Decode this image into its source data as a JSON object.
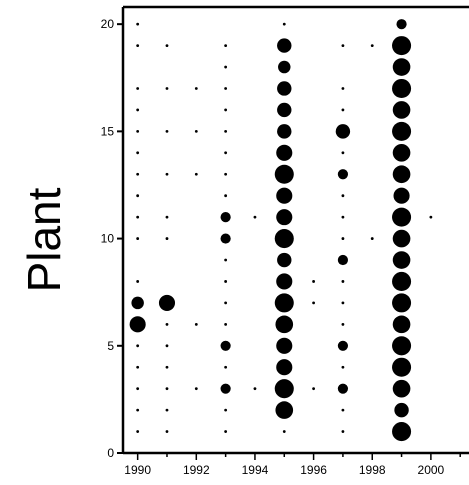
{
  "chart_data": {
    "type": "scatter",
    "ylabel": "Plant",
    "xlabel": "",
    "title": "",
    "xlim": [
      1989.5,
      2001.3
    ],
    "ylim": [
      0,
      20.8
    ],
    "xticks": [
      1990,
      1992,
      1994,
      1996,
      1998,
      2000
    ],
    "xtick_labels": [
      "1990",
      "1992",
      "1994",
      "1996",
      "1998",
      "2000"
    ],
    "yticks": [
      0,
      5,
      10,
      15,
      20
    ],
    "ytick_labels": [
      "0",
      "5",
      "10",
      "15",
      "20"
    ],
    "grid": false,
    "legend": "none",
    "marker_color": "#000000",
    "size_encoding": "marker area proportional to value (relative 1-10)",
    "points": [
      {
        "x": 1990,
        "y": 1,
        "v": 1
      },
      {
        "x": 1990,
        "y": 2,
        "v": 1
      },
      {
        "x": 1990,
        "y": 3,
        "v": 1
      },
      {
        "x": 1990,
        "y": 4,
        "v": 1
      },
      {
        "x": 1990,
        "y": 5,
        "v": 1
      },
      {
        "x": 1990,
        "y": 6,
        "v": 5
      },
      {
        "x": 1990,
        "y": 7,
        "v": 3
      },
      {
        "x": 1990,
        "y": 8,
        "v": 1
      },
      {
        "x": 1990,
        "y": 10,
        "v": 1
      },
      {
        "x": 1990,
        "y": 11,
        "v": 1
      },
      {
        "x": 1990,
        "y": 12,
        "v": 1
      },
      {
        "x": 1990,
        "y": 13,
        "v": 1
      },
      {
        "x": 1990,
        "y": 14,
        "v": 1
      },
      {
        "x": 1990,
        "y": 15,
        "v": 1
      },
      {
        "x": 1990,
        "y": 16,
        "v": 1
      },
      {
        "x": 1990,
        "y": 17,
        "v": 1
      },
      {
        "x": 1990,
        "y": 19,
        "v": 1
      },
      {
        "x": 1990,
        "y": 20,
        "v": 1
      },
      {
        "x": 1991,
        "y": 1,
        "v": 1
      },
      {
        "x": 1991,
        "y": 2,
        "v": 1
      },
      {
        "x": 1991,
        "y": 3,
        "v": 1
      },
      {
        "x": 1991,
        "y": 4,
        "v": 1
      },
      {
        "x": 1991,
        "y": 5,
        "v": 1
      },
      {
        "x": 1991,
        "y": 6,
        "v": 1
      },
      {
        "x": 1991,
        "y": 7,
        "v": 5
      },
      {
        "x": 1991,
        "y": 10,
        "v": 1
      },
      {
        "x": 1991,
        "y": 11,
        "v": 1
      },
      {
        "x": 1991,
        "y": 13,
        "v": 1
      },
      {
        "x": 1991,
        "y": 15,
        "v": 1
      },
      {
        "x": 1991,
        "y": 17,
        "v": 1
      },
      {
        "x": 1991,
        "y": 19,
        "v": 1
      },
      {
        "x": 1992,
        "y": 3,
        "v": 1
      },
      {
        "x": 1992,
        "y": 6,
        "v": 1
      },
      {
        "x": 1992,
        "y": 13,
        "v": 1
      },
      {
        "x": 1992,
        "y": 15,
        "v": 1
      },
      {
        "x": 1992,
        "y": 17,
        "v": 1
      },
      {
        "x": 1993,
        "y": 1,
        "v": 1
      },
      {
        "x": 1993,
        "y": 2,
        "v": 1
      },
      {
        "x": 1993,
        "y": 3,
        "v": 2
      },
      {
        "x": 1993,
        "y": 4,
        "v": 1
      },
      {
        "x": 1993,
        "y": 5,
        "v": 2
      },
      {
        "x": 1993,
        "y": 6,
        "v": 1
      },
      {
        "x": 1993,
        "y": 7,
        "v": 1
      },
      {
        "x": 1993,
        "y": 8,
        "v": 1
      },
      {
        "x": 1993,
        "y": 9,
        "v": 1
      },
      {
        "x": 1993,
        "y": 10,
        "v": 2
      },
      {
        "x": 1993,
        "y": 11,
        "v": 2
      },
      {
        "x": 1993,
        "y": 12,
        "v": 1
      },
      {
        "x": 1993,
        "y": 13,
        "v": 1
      },
      {
        "x": 1993,
        "y": 14,
        "v": 1
      },
      {
        "x": 1993,
        "y": 15,
        "v": 1
      },
      {
        "x": 1993,
        "y": 16,
        "v": 1
      },
      {
        "x": 1993,
        "y": 17,
        "v": 1
      },
      {
        "x": 1993,
        "y": 18,
        "v": 1
      },
      {
        "x": 1993,
        "y": 19,
        "v": 1
      },
      {
        "x": 1994,
        "y": 3,
        "v": 1
      },
      {
        "x": 1994,
        "y": 11,
        "v": 1
      },
      {
        "x": 1995,
        "y": 1,
        "v": 1
      },
      {
        "x": 1995,
        "y": 2,
        "v": 6
      },
      {
        "x": 1995,
        "y": 3,
        "v": 7
      },
      {
        "x": 1995,
        "y": 4,
        "v": 5
      },
      {
        "x": 1995,
        "y": 5,
        "v": 5
      },
      {
        "x": 1995,
        "y": 6,
        "v": 6
      },
      {
        "x": 1995,
        "y": 7,
        "v": 7
      },
      {
        "x": 1995,
        "y": 8,
        "v": 5
      },
      {
        "x": 1995,
        "y": 9,
        "v": 4
      },
      {
        "x": 1995,
        "y": 10,
        "v": 7
      },
      {
        "x": 1995,
        "y": 11,
        "v": 5
      },
      {
        "x": 1995,
        "y": 12,
        "v": 5
      },
      {
        "x": 1995,
        "y": 13,
        "v": 7
      },
      {
        "x": 1995,
        "y": 14,
        "v": 5
      },
      {
        "x": 1995,
        "y": 15,
        "v": 4
      },
      {
        "x": 1995,
        "y": 16,
        "v": 4
      },
      {
        "x": 1995,
        "y": 17,
        "v": 4
      },
      {
        "x": 1995,
        "y": 18,
        "v": 3
      },
      {
        "x": 1995,
        "y": 19,
        "v": 4
      },
      {
        "x": 1995,
        "y": 20,
        "v": 1
      },
      {
        "x": 1996,
        "y": 3,
        "v": 1
      },
      {
        "x": 1996,
        "y": 7,
        "v": 1
      },
      {
        "x": 1996,
        "y": 8,
        "v": 1
      },
      {
        "x": 1997,
        "y": 1,
        "v": 1
      },
      {
        "x": 1997,
        "y": 2,
        "v": 1
      },
      {
        "x": 1997,
        "y": 3,
        "v": 2
      },
      {
        "x": 1997,
        "y": 4,
        "v": 1
      },
      {
        "x": 1997,
        "y": 5,
        "v": 2
      },
      {
        "x": 1997,
        "y": 6,
        "v": 1
      },
      {
        "x": 1997,
        "y": 7,
        "v": 1
      },
      {
        "x": 1997,
        "y": 8,
        "v": 1
      },
      {
        "x": 1997,
        "y": 9,
        "v": 2
      },
      {
        "x": 1997,
        "y": 10,
        "v": 1
      },
      {
        "x": 1997,
        "y": 11,
        "v": 1
      },
      {
        "x": 1997,
        "y": 12,
        "v": 1
      },
      {
        "x": 1997,
        "y": 13,
        "v": 2
      },
      {
        "x": 1997,
        "y": 14,
        "v": 1
      },
      {
        "x": 1997,
        "y": 15,
        "v": 4
      },
      {
        "x": 1997,
        "y": 16,
        "v": 1
      },
      {
        "x": 1997,
        "y": 17,
        "v": 1
      },
      {
        "x": 1997,
        "y": 19,
        "v": 1
      },
      {
        "x": 1998,
        "y": 10,
        "v": 1
      },
      {
        "x": 1998,
        "y": 19,
        "v": 1
      },
      {
        "x": 1999,
        "y": 1,
        "v": 7
      },
      {
        "x": 1999,
        "y": 2,
        "v": 4
      },
      {
        "x": 1999,
        "y": 3,
        "v": 6
      },
      {
        "x": 1999,
        "y": 4,
        "v": 7
      },
      {
        "x": 1999,
        "y": 5,
        "v": 7
      },
      {
        "x": 1999,
        "y": 6,
        "v": 6
      },
      {
        "x": 1999,
        "y": 7,
        "v": 7
      },
      {
        "x": 1999,
        "y": 8,
        "v": 7
      },
      {
        "x": 1999,
        "y": 9,
        "v": 6
      },
      {
        "x": 1999,
        "y": 10,
        "v": 6
      },
      {
        "x": 1999,
        "y": 11,
        "v": 7
      },
      {
        "x": 1999,
        "y": 12,
        "v": 5
      },
      {
        "x": 1999,
        "y": 13,
        "v": 6
      },
      {
        "x": 1999,
        "y": 14,
        "v": 6
      },
      {
        "x": 1999,
        "y": 15,
        "v": 7
      },
      {
        "x": 1999,
        "y": 16,
        "v": 6
      },
      {
        "x": 1999,
        "y": 17,
        "v": 7
      },
      {
        "x": 1999,
        "y": 18,
        "v": 6
      },
      {
        "x": 1999,
        "y": 19,
        "v": 7
      },
      {
        "x": 1999,
        "y": 20,
        "v": 2
      },
      {
        "x": 2000,
        "y": 11,
        "v": 1
      }
    ]
  }
}
